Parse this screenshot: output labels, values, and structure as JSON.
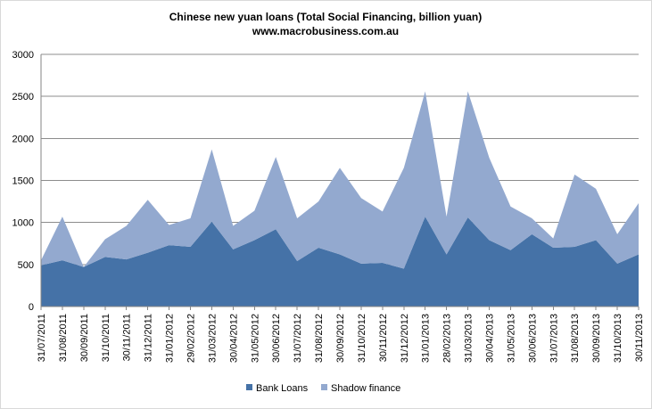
{
  "chart_data": {
    "type": "area",
    "stacked": true,
    "title": "Chinese new yuan loans (Total Social  Financing,  billion yuan)",
    "subtitle": "www.macrobusiness.com.au",
    "ylim": [
      0,
      3000
    ],
    "yticks": [
      "0",
      "500",
      "1000",
      "1500",
      "2000",
      "2500",
      "3000"
    ],
    "ytick_values": [
      0,
      500,
      1000,
      1500,
      2000,
      2500,
      3000
    ],
    "grid": true,
    "legend_position": "bottom",
    "categories": [
      "31/07/2011",
      "31/08/2011",
      "30/09/2011",
      "31/10/2011",
      "30/11/2011",
      "31/12/2011",
      "31/01/2012",
      "29/02/2012",
      "31/03/2012",
      "30/04/2012",
      "31/05/2012",
      "30/06/2012",
      "31/07/2012",
      "31/08/2012",
      "30/09/2012",
      "31/10/2012",
      "30/11/2012",
      "31/12/2012",
      "31/01/2013",
      "28/02/2013",
      "31/03/2013",
      "30/04/2013",
      "31/05/2013",
      "30/06/2013",
      "31/07/2013",
      "31/08/2013",
      "30/09/2013",
      "31/10/2013",
      "30/11/2013"
    ],
    "series": [
      {
        "name": "Bank Loans",
        "color": "#4572a7",
        "values": [
          490,
          550,
          470,
          590,
          560,
          640,
          730,
          710,
          1010,
          680,
          790,
          920,
          540,
          700,
          620,
          510,
          520,
          450,
          1070,
          620,
          1060,
          790,
          670,
          860,
          700,
          710,
          790,
          510,
          620
        ]
      },
      {
        "name": "Shadow finance",
        "color": "#93a9cf",
        "values": [
          60,
          520,
          0,
          210,
          400,
          630,
          240,
          340,
          860,
          280,
          350,
          860,
          510,
          550,
          1030,
          780,
          610,
          1200,
          1490,
          450,
          1500,
          980,
          520,
          190,
          110,
          860,
          610,
          350,
          610
        ]
      }
    ]
  }
}
